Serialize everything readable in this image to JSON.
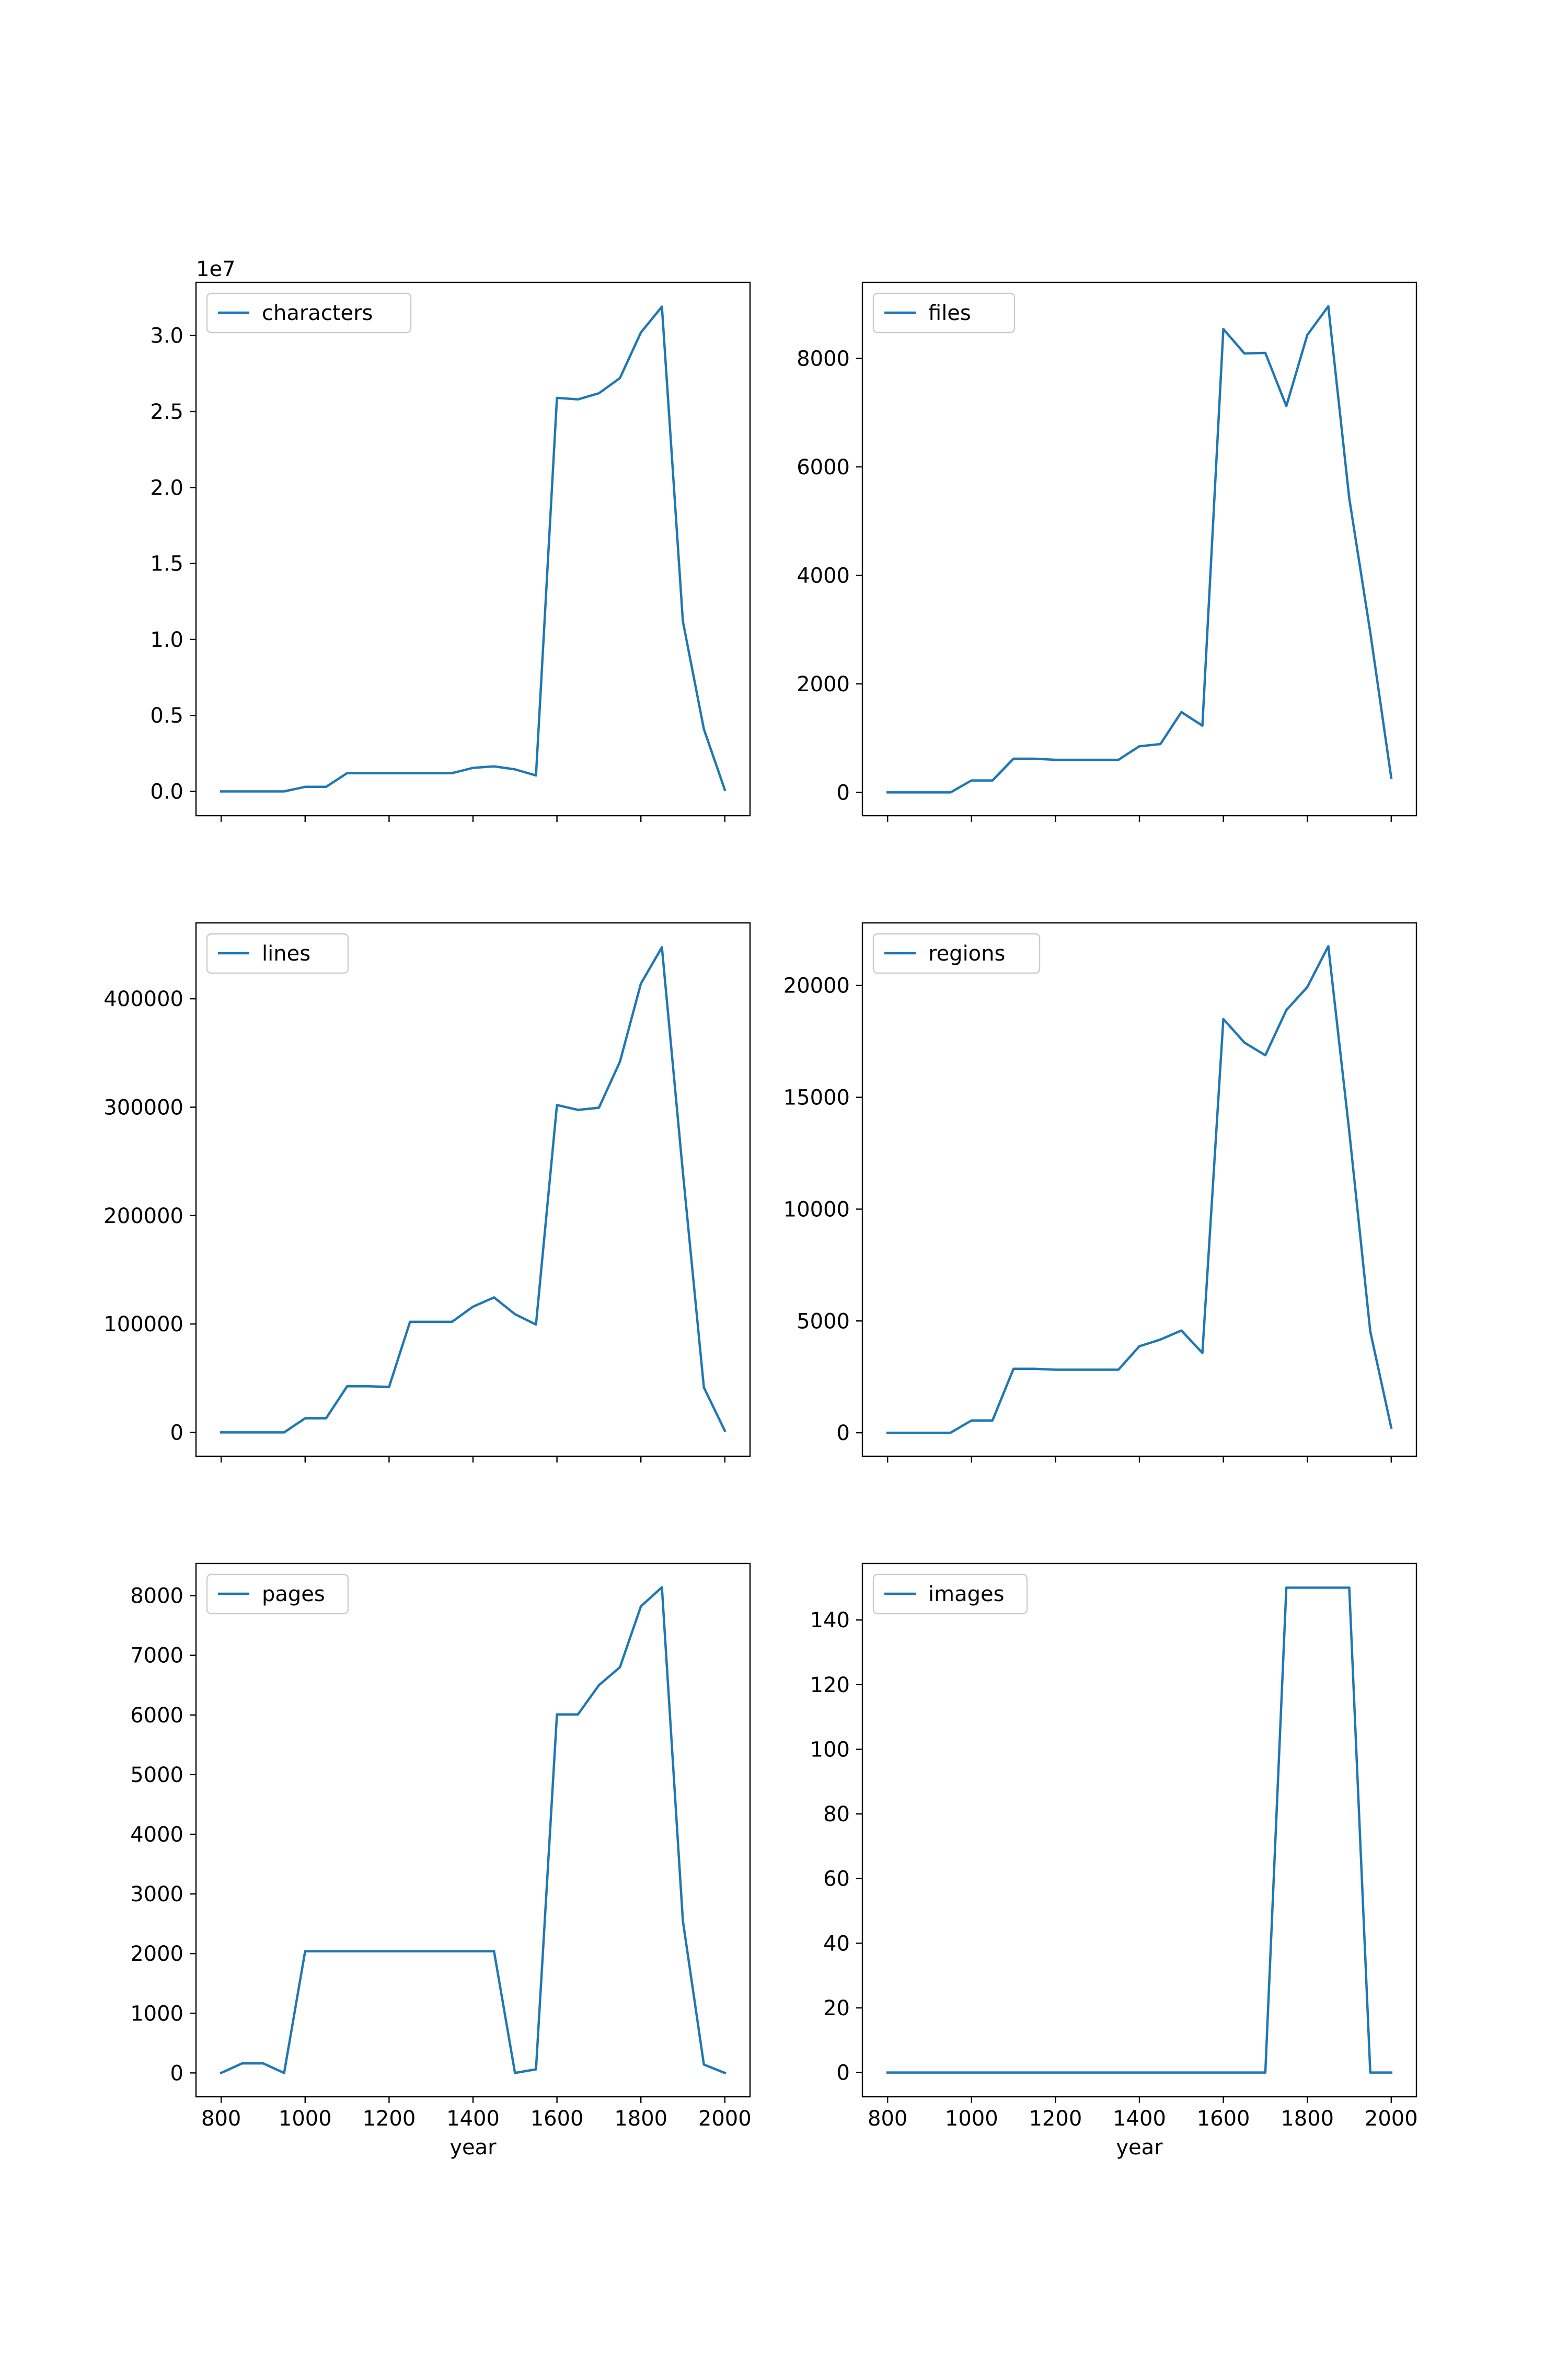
{
  "figure": {
    "xlabel": "year"
  },
  "line_color": "#1f77b4",
  "chart_data": [
    {
      "type": "line",
      "legend_location": "upper left",
      "x": [
        800,
        850,
        900,
        950,
        1000,
        1050,
        1100,
        1150,
        1200,
        1250,
        1300,
        1350,
        1400,
        1450,
        1500,
        1550,
        1600,
        1650,
        1700,
        1750,
        1800,
        1850,
        1900,
        1950,
        2000
      ],
      "xlim": [
        740,
        2060
      ],
      "xticks": [
        800,
        1000,
        1200,
        1400,
        1600,
        1800,
        2000
      ],
      "xticklabels": [
        "800",
        "1000",
        "1200",
        "1400",
        "1600",
        "1800",
        "2000"
      ],
      "show_xticklabels": false,
      "xlabel": "",
      "series": [
        {
          "name": "characters",
          "values": [
            0,
            0,
            0,
            0,
            0.03,
            0.03,
            0.12,
            0.12,
            0.12,
            0.12,
            0.12,
            0.12,
            0.155,
            0.165,
            0.145,
            0.105,
            2.59,
            2.58,
            2.62,
            2.72,
            3.02,
            3.19,
            1.12,
            0.41,
            0.01
          ]
        }
      ],
      "ylim": [
        -0.16,
        3.35
      ],
      "yticks": [
        0.0,
        0.5,
        1.0,
        1.5,
        2.0,
        2.5,
        3.0
      ],
      "yticklabels": [
        "0.0",
        "0.5",
        "1.0",
        "1.5",
        "2.0",
        "2.5",
        "3.0"
      ],
      "offset_text": "1e7"
    },
    {
      "type": "line",
      "legend_location": "upper left",
      "x": [
        800,
        850,
        900,
        950,
        1000,
        1050,
        1100,
        1150,
        1200,
        1250,
        1300,
        1350,
        1400,
        1450,
        1500,
        1550,
        1600,
        1650,
        1700,
        1750,
        1800,
        1850,
        1900,
        1950,
        2000
      ],
      "xlim": [
        740,
        2060
      ],
      "xticks": [
        800,
        1000,
        1200,
        1400,
        1600,
        1800,
        2000
      ],
      "xticklabels": [
        "800",
        "1000",
        "1200",
        "1400",
        "1600",
        "1800",
        "2000"
      ],
      "show_xticklabels": false,
      "xlabel": "",
      "series": [
        {
          "name": "files",
          "values": [
            0,
            0,
            0,
            0,
            220,
            220,
            620,
            620,
            600,
            600,
            600,
            600,
            850,
            890,
            1480,
            1230,
            8540,
            8090,
            8100,
            7120,
            8430,
            8960,
            5420,
            2950,
            270
          ]
        }
      ],
      "ylim": [
        -430,
        9400
      ],
      "yticks": [
        0,
        2000,
        4000,
        6000,
        8000
      ],
      "yticklabels": [
        "0",
        "2000",
        "4000",
        "6000",
        "8000"
      ],
      "offset_text": ""
    },
    {
      "type": "line",
      "legend_location": "upper left",
      "x": [
        800,
        850,
        900,
        950,
        1000,
        1050,
        1100,
        1150,
        1200,
        1250,
        1300,
        1350,
        1400,
        1450,
        1500,
        1550,
        1600,
        1650,
        1700,
        1750,
        1800,
        1850,
        1900,
        1950,
        2000
      ],
      "xlim": [
        740,
        2060
      ],
      "xticks": [
        800,
        1000,
        1200,
        1400,
        1600,
        1800,
        2000
      ],
      "xticklabels": [
        "800",
        "1000",
        "1200",
        "1400",
        "1600",
        "1800",
        "2000"
      ],
      "show_xticklabels": false,
      "xlabel": "",
      "series": [
        {
          "name": "lines",
          "values": [
            0,
            0,
            0,
            0,
            13000,
            13000,
            42500,
            42500,
            42000,
            102000,
            102000,
            102000,
            116000,
            124500,
            109000,
            99500,
            302000,
            297500,
            299500,
            342000,
            414000,
            447500,
            240000,
            41500,
            1500
          ]
        }
      ],
      "ylim": [
        -22000,
        470000
      ],
      "yticks": [
        0,
        100000,
        200000,
        300000,
        400000
      ],
      "yticklabels": [
        "0",
        "100000",
        "200000",
        "300000",
        "400000"
      ],
      "offset_text": ""
    },
    {
      "type": "line",
      "legend_location": "upper left",
      "x": [
        800,
        850,
        900,
        950,
        1000,
        1050,
        1100,
        1150,
        1200,
        1250,
        1300,
        1350,
        1400,
        1450,
        1500,
        1550,
        1600,
        1650,
        1700,
        1750,
        1800,
        1850,
        1900,
        1950,
        2000
      ],
      "xlim": [
        740,
        2060
      ],
      "xticks": [
        800,
        1000,
        1200,
        1400,
        1600,
        1800,
        2000
      ],
      "xticklabels": [
        "800",
        "1000",
        "1200",
        "1400",
        "1600",
        "1800",
        "2000"
      ],
      "show_xticklabels": false,
      "xlabel": "",
      "series": [
        {
          "name": "regions",
          "values": [
            0,
            0,
            0,
            0,
            550,
            550,
            2860,
            2860,
            2820,
            2820,
            2820,
            2820,
            3870,
            4170,
            4570,
            3570,
            18500,
            17450,
            16880,
            18900,
            19930,
            21760,
            13480,
            4530,
            230
          ]
        }
      ],
      "ylim": [
        -1050,
        22800
      ],
      "yticks": [
        0,
        5000,
        10000,
        15000,
        20000
      ],
      "yticklabels": [
        "0",
        "5000",
        "10000",
        "15000",
        "20000"
      ],
      "offset_text": ""
    },
    {
      "type": "line",
      "legend_location": "upper left",
      "x": [
        800,
        850,
        900,
        950,
        1000,
        1050,
        1100,
        1150,
        1200,
        1250,
        1300,
        1350,
        1400,
        1450,
        1500,
        1550,
        1600,
        1650,
        1700,
        1750,
        1800,
        1850,
        1900,
        1950,
        2000
      ],
      "xlim": [
        740,
        2060
      ],
      "xticks": [
        800,
        1000,
        1200,
        1400,
        1600,
        1800,
        2000
      ],
      "xticklabels": [
        "800",
        "1000",
        "1200",
        "1400",
        "1600",
        "1800",
        "2000"
      ],
      "show_xticklabels": true,
      "xlabel": "year",
      "series": [
        {
          "name": "pages",
          "values": [
            0,
            160,
            160,
            0,
            2040,
            2040,
            2040,
            2040,
            2040,
            2040,
            2040,
            2040,
            2040,
            2040,
            0,
            60,
            6010,
            6010,
            6500,
            6800,
            7820,
            8140,
            2550,
            140,
            0
          ]
        }
      ],
      "ylim": [
        -400,
        8540
      ],
      "yticks": [
        0,
        1000,
        2000,
        3000,
        4000,
        5000,
        6000,
        7000,
        8000
      ],
      "yticklabels": [
        "0",
        "1000",
        "2000",
        "3000",
        "4000",
        "5000",
        "6000",
        "7000",
        "8000"
      ],
      "offset_text": ""
    },
    {
      "type": "line",
      "legend_location": "upper left",
      "x": [
        800,
        850,
        900,
        950,
        1000,
        1050,
        1100,
        1150,
        1200,
        1250,
        1300,
        1350,
        1400,
        1450,
        1500,
        1550,
        1600,
        1650,
        1700,
        1750,
        1800,
        1850,
        1900,
        1950,
        2000
      ],
      "xlim": [
        740,
        2060
      ],
      "xticks": [
        800,
        1000,
        1200,
        1400,
        1600,
        1800,
        2000
      ],
      "xticklabels": [
        "800",
        "1000",
        "1200",
        "1400",
        "1600",
        "1800",
        "2000"
      ],
      "show_xticklabels": true,
      "xlabel": "year",
      "series": [
        {
          "name": "images",
          "values": [
            0,
            0,
            0,
            0,
            0,
            0,
            0,
            0,
            0,
            0,
            0,
            0,
            0,
            0,
            0,
            0,
            0,
            0,
            0,
            150,
            150,
            150,
            150,
            0,
            0
          ]
        }
      ],
      "ylim": [
        -7.5,
        157.5
      ],
      "yticks": [
        0,
        20,
        40,
        60,
        80,
        100,
        120,
        140
      ],
      "yticklabels": [
        "0",
        "20",
        "40",
        "60",
        "80",
        "100",
        "120",
        "140"
      ],
      "offset_text": ""
    }
  ]
}
